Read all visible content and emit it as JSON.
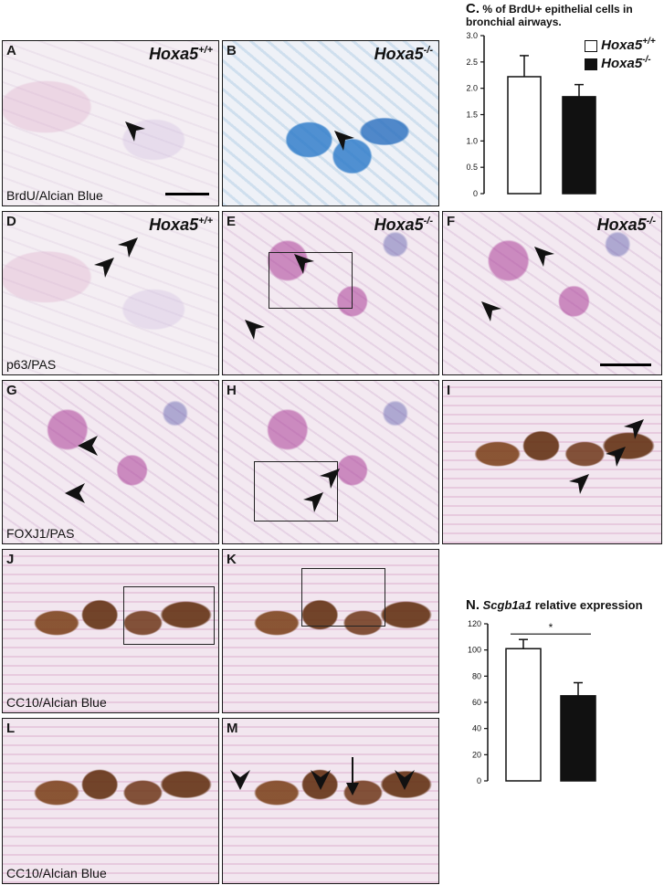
{
  "panels": {
    "A": {
      "label": "A",
      "genotype": "Hoxa5",
      "sup": "+/+",
      "stain": "BrdU/Alcian Blue"
    },
    "B": {
      "label": "B",
      "genotype": "Hoxa5",
      "sup": "-/-"
    },
    "D": {
      "label": "D",
      "genotype": "Hoxa5",
      "sup": "+/+",
      "stain": "p63/PAS"
    },
    "E": {
      "label": "E",
      "genotype": "Hoxa5",
      "sup": "-/-"
    },
    "F": {
      "label": "F",
      "genotype": "Hoxa5",
      "sup": "-/-"
    },
    "G": {
      "label": "G",
      "stain": "FOXJ1/PAS"
    },
    "H": {
      "label": "H"
    },
    "I": {
      "label": "I"
    },
    "J": {
      "label": "J",
      "stain": "CC10/Alcian Blue"
    },
    "K": {
      "label": "K"
    },
    "L": {
      "label": "L",
      "stain": "CC10/Alcian Blue"
    },
    "M": {
      "label": "M"
    }
  },
  "chart_data": [
    {
      "type": "bar",
      "panel_label": "C.",
      "title": "% of BrdU+ epithelial cells in bronchial airways.",
      "categories": [
        "Hoxa5+/+",
        "Hoxa5-/-"
      ],
      "values": [
        2.22,
        1.84
      ],
      "errors": [
        0.4,
        0.23
      ],
      "colors": [
        "#ffffff",
        "#111111"
      ],
      "ylim": [
        0,
        3.0
      ],
      "yticks": [
        "0",
        "0.5",
        "1.0",
        "1.5",
        "2.0",
        "2.5",
        "3.0"
      ],
      "ytick_values": [
        0,
        0.5,
        1.0,
        1.5,
        2.0,
        2.5,
        3.0
      ],
      "legend": [
        {
          "genotype": "Hoxa5",
          "sup": "+/+",
          "color": "#ffffff"
        },
        {
          "genotype": "Hoxa5",
          "sup": "-/-",
          "color": "#111111"
        }
      ],
      "legend_position": "top-right"
    },
    {
      "type": "bar",
      "panel_label": "N.",
      "title_gene": "Scgb1a1",
      "title_rest": " relative expression",
      "categories": [
        "Hoxa5+/+",
        "Hoxa5-/-"
      ],
      "values": [
        101,
        65
      ],
      "errors": [
        7,
        10
      ],
      "colors": [
        "#ffffff",
        "#111111"
      ],
      "ylim": [
        0,
        120
      ],
      "yticks": [
        "0",
        "20",
        "40",
        "60",
        "80",
        "100",
        "120"
      ],
      "ytick_values": [
        0,
        20,
        40,
        60,
        80,
        100,
        120
      ],
      "significance": "*"
    }
  ]
}
